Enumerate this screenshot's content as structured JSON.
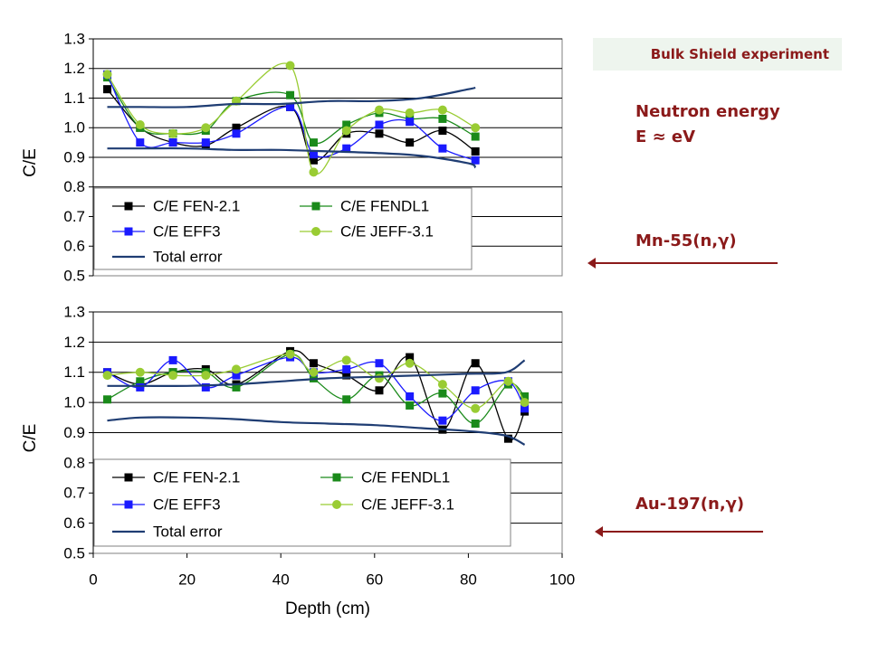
{
  "banner": "Bulk Shield experiment",
  "annotations": {
    "energy_line1": "Neutron energy",
    "energy_line2": "E  ≈  eV",
    "reaction_top": "Mn-55(n,γ)",
    "reaction_bottom": "Au-197(n,γ)"
  },
  "colors": {
    "accent": "#8b1a1a",
    "fen": "#000000",
    "fendl": "#1a8a1a",
    "eff": "#1a1aff",
    "jeff": "#99cc33",
    "total_error": "#1f3d73"
  },
  "chart_data": [
    {
      "type": "line",
      "reaction": "Mn-55(n,γ)",
      "xlabel": "",
      "ylabel": "C/E",
      "xlim": [
        0,
        100
      ],
      "ylim": [
        0.5,
        1.3
      ],
      "yticks": [
        "0.5",
        "0.6",
        "0.7",
        "0.8",
        "0.9",
        "1.0",
        "1.1",
        "1.2",
        "1.3"
      ],
      "grid": "horizontal",
      "legend_position": "bottom-left",
      "series": [
        {
          "name": "C/E FEN-2.1",
          "marker": "square",
          "x": [
            3,
            10,
            17,
            24,
            30.5,
            42,
            47,
            54,
            61,
            67.5,
            74.5,
            81.5
          ],
          "values": [
            1.13,
            1.0,
            0.95,
            0.94,
            1.0,
            1.07,
            0.89,
            0.98,
            0.98,
            0.95,
            0.99,
            0.92
          ]
        },
        {
          "name": "C/E FENDL1",
          "marker": "square",
          "x": [
            3,
            10,
            17,
            24,
            30.5,
            42,
            47,
            54,
            61,
            67.5,
            74.5,
            81.5
          ],
          "values": [
            1.17,
            1.0,
            0.98,
            0.99,
            1.09,
            1.11,
            0.95,
            1.01,
            1.05,
            1.03,
            1.03,
            0.97
          ]
        },
        {
          "name": "C/E EFF3",
          "marker": "square",
          "x": [
            3,
            10,
            17,
            24,
            30.5,
            42,
            47,
            54,
            61,
            67.5,
            74.5,
            81.5
          ],
          "values": [
            1.18,
            0.95,
            0.95,
            0.95,
            0.98,
            1.07,
            0.91,
            0.93,
            1.01,
            1.02,
            0.93,
            0.89
          ]
        },
        {
          "name": "C/E JEFF-3.1",
          "marker": "circle",
          "x": [
            3,
            10,
            17,
            24,
            30.5,
            42,
            47,
            54,
            61,
            67.5,
            74.5,
            81.5
          ],
          "values": [
            1.18,
            1.01,
            0.98,
            1.0,
            1.09,
            1.21,
            0.85,
            0.99,
            1.06,
            1.05,
            1.06,
            1.0
          ]
        },
        {
          "name": "Total error",
          "marker": "none",
          "x": [
            3,
            10,
            20,
            30,
            40,
            50,
            60,
            70,
            80,
            81.5
          ],
          "values": [
            1.07,
            1.07,
            1.07,
            1.08,
            1.08,
            1.09,
            1.09,
            1.1,
            1.13,
            1.135
          ]
        },
        {
          "name": "Total error",
          "marker": "none",
          "x": [
            3,
            10,
            20,
            30,
            40,
            50,
            60,
            70,
            80,
            81.5
          ],
          "values": [
            0.93,
            0.93,
            0.93,
            0.925,
            0.925,
            0.92,
            0.915,
            0.905,
            0.88,
            0.865
          ]
        }
      ]
    },
    {
      "type": "line",
      "reaction": "Au-197(n,γ)",
      "xlabel": "Depth (cm)",
      "ylabel": "C/E",
      "xlim": [
        0,
        100
      ],
      "ylim": [
        0.5,
        1.3
      ],
      "xticks": [
        "0",
        "20",
        "40",
        "60",
        "80",
        "100"
      ],
      "yticks": [
        "0.5",
        "0.6",
        "0.7",
        "0.8",
        "0.9",
        "1.0",
        "1.1",
        "1.2",
        "1.3"
      ],
      "grid": "horizontal",
      "legend_position": "bottom-left",
      "series": [
        {
          "name": "C/E FEN-2.1",
          "marker": "square",
          "x": [
            3,
            10,
            17,
            24,
            30.5,
            42,
            47,
            54,
            61,
            67.5,
            74.5,
            81.5,
            88.5,
            92
          ],
          "values": [
            1.1,
            1.06,
            1.1,
            1.11,
            1.06,
            1.17,
            1.13,
            1.09,
            1.04,
            1.15,
            0.91,
            1.13,
            0.88,
            0.97
          ]
        },
        {
          "name": "C/E FENDL1",
          "marker": "square",
          "x": [
            3,
            10,
            17,
            24,
            30.5,
            42,
            47,
            54,
            61,
            67.5,
            74.5,
            81.5,
            88.5,
            92
          ],
          "values": [
            1.01,
            1.07,
            1.1,
            1.1,
            1.05,
            1.16,
            1.08,
            1.01,
            1.09,
            0.99,
            1.03,
            0.93,
            1.06,
            1.02
          ]
        },
        {
          "name": "C/E EFF3",
          "marker": "square",
          "x": [
            3,
            10,
            17,
            24,
            30.5,
            42,
            47,
            54,
            61,
            67.5,
            74.5,
            81.5,
            88.5,
            92
          ],
          "values": [
            1.1,
            1.05,
            1.14,
            1.05,
            1.09,
            1.15,
            1.1,
            1.11,
            1.13,
            1.02,
            0.94,
            1.04,
            1.07,
            0.98
          ]
        },
        {
          "name": "C/E JEFF-3.1",
          "marker": "circle",
          "x": [
            3,
            10,
            17,
            24,
            30.5,
            42,
            47,
            54,
            61,
            67.5,
            74.5,
            81.5,
            88.5,
            92
          ],
          "values": [
            1.09,
            1.1,
            1.09,
            1.09,
            1.11,
            1.16,
            1.1,
            1.14,
            1.08,
            1.13,
            1.06,
            0.98,
            1.07,
            1.0
          ]
        },
        {
          "name": "Total error",
          "marker": "none",
          "x": [
            3,
            10,
            20,
            30,
            40,
            50,
            60,
            70,
            80,
            88,
            92
          ],
          "values": [
            1.055,
            1.055,
            1.055,
            1.06,
            1.07,
            1.08,
            1.085,
            1.09,
            1.095,
            1.1,
            1.14
          ]
        },
        {
          "name": "Total error",
          "marker": "none",
          "x": [
            3,
            10,
            20,
            30,
            40,
            50,
            60,
            70,
            80,
            88,
            92
          ],
          "values": [
            0.94,
            0.95,
            0.95,
            0.945,
            0.935,
            0.93,
            0.925,
            0.915,
            0.905,
            0.89,
            0.86
          ]
        }
      ]
    }
  ]
}
